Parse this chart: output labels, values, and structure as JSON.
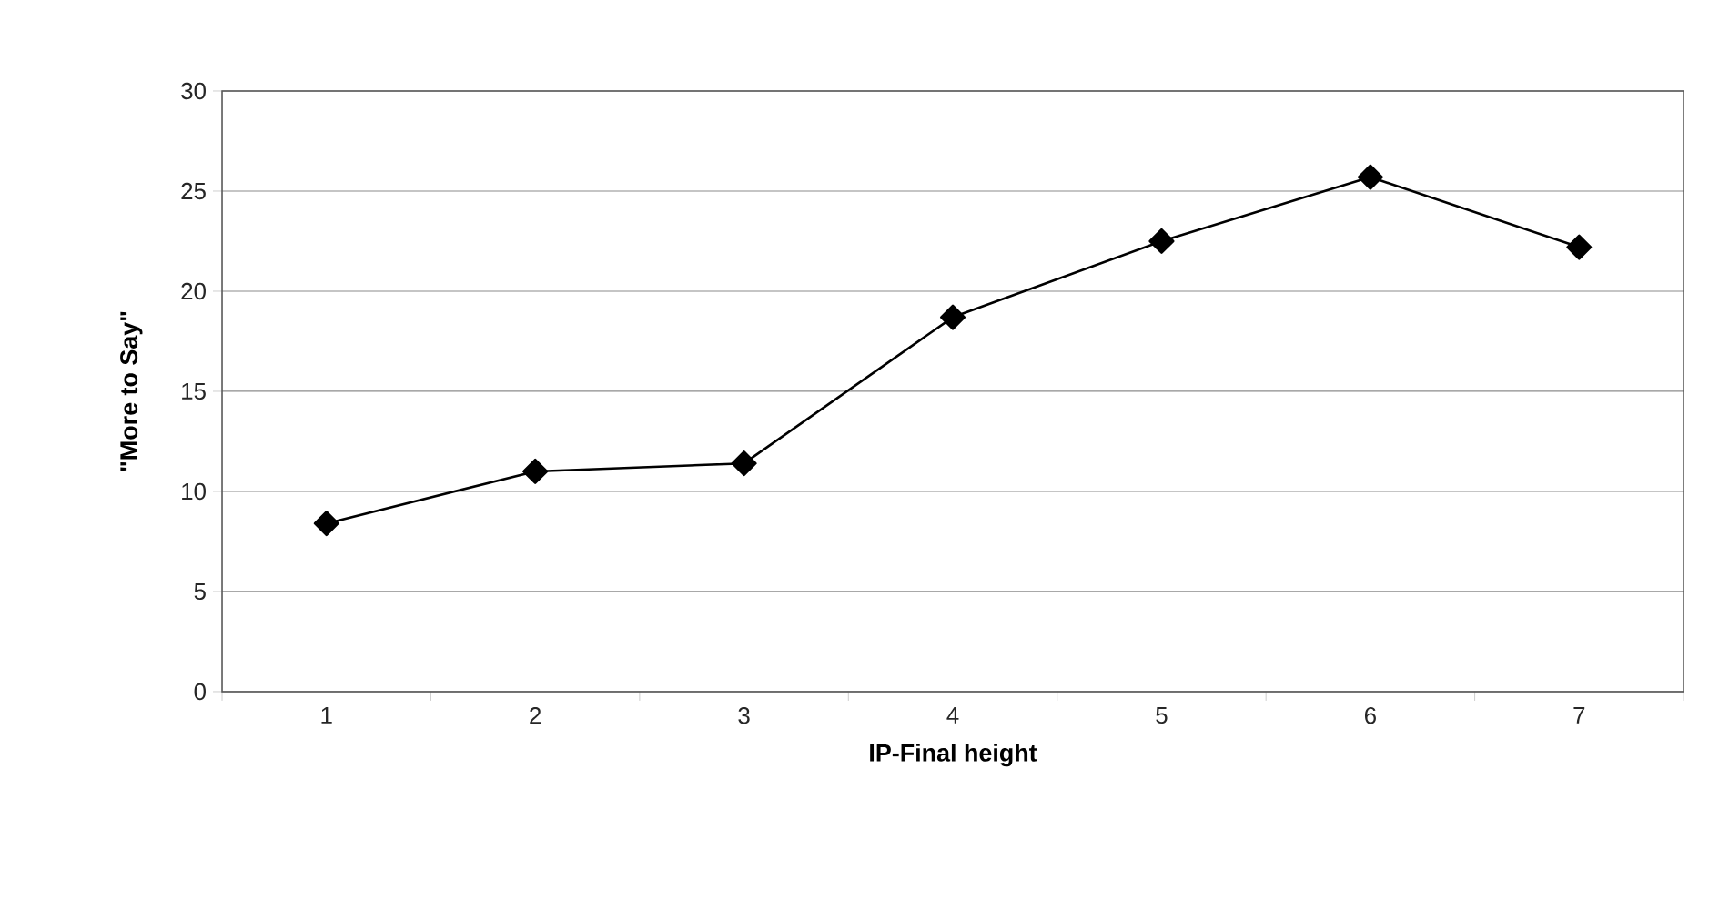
{
  "chart_data": {
    "type": "line",
    "xlabel": "IP-Final height",
    "ylabel": "\"More to Say\"",
    "categories": [
      "1",
      "2",
      "3",
      "4",
      "5",
      "6",
      "7"
    ],
    "series": [
      {
        "color": "#000000",
        "values": [
          8.4,
          11.0,
          11.4,
          18.7,
          22.5,
          25.7,
          22.2
        ]
      }
    ],
    "ylim": [
      0,
      30
    ],
    "yticks": [
      0,
      5,
      10,
      15,
      20,
      25,
      30
    ],
    "grid": "y",
    "marker": "diamond",
    "line_style": "solid"
  }
}
